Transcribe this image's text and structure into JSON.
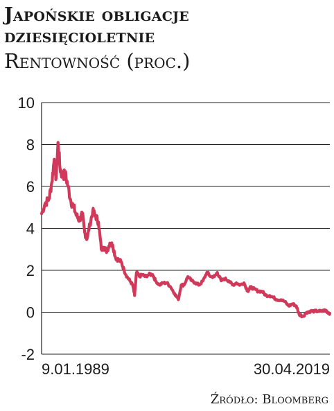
{
  "header": {
    "title": "Japońskie obligacje dziesięcioletnie",
    "subtitle": "Rentowność (proc.)"
  },
  "footer": {
    "source": "Źródło: Bloomberg"
  },
  "colors": {
    "series": "#d0395a",
    "grid": "#222222",
    "text": "#1a1a1a"
  },
  "chart_data": {
    "type": "line",
    "title": "Japońskie obligacje dziesięcioletnie",
    "ylabel": "Rentowność (proc.)",
    "xlabel": "",
    "ylim": [
      -2,
      10
    ],
    "yticks": [
      "10",
      "8",
      "6",
      "4",
      "2",
      "0",
      "-2"
    ],
    "xticks": [
      "9.01.1989",
      "30.04.2019"
    ],
    "grid": true,
    "series": [
      {
        "values": [
          [
            1989.02,
            4.7
          ],
          [
            1989.4,
            5.2
          ],
          [
            1989.8,
            5.4
          ],
          [
            1990.1,
            6.2
          ],
          [
            1990.35,
            7.3
          ],
          [
            1990.55,
            6.4
          ],
          [
            1990.75,
            8.1
          ],
          [
            1990.95,
            6.9
          ],
          [
            1991.2,
            6.5
          ],
          [
            1991.5,
            6.6
          ],
          [
            1991.8,
            6.0
          ],
          [
            1992.1,
            5.3
          ],
          [
            1992.4,
            5.0
          ],
          [
            1992.7,
            4.6
          ],
          [
            1993.0,
            4.4
          ],
          [
            1993.3,
            4.7
          ],
          [
            1993.55,
            3.8
          ],
          [
            1993.8,
            3.5
          ],
          [
            1994.1,
            4.2
          ],
          [
            1994.4,
            4.8
          ],
          [
            1994.7,
            4.6
          ],
          [
            1995.0,
            4.3
          ],
          [
            1995.3,
            3.0
          ],
          [
            1995.6,
            3.1
          ],
          [
            1995.9,
            2.9
          ],
          [
            1996.2,
            3.3
          ],
          [
            1996.5,
            3.2
          ],
          [
            1996.8,
            2.6
          ],
          [
            1997.1,
            2.5
          ],
          [
            1997.4,
            2.4
          ],
          [
            1997.7,
            2.0
          ],
          [
            1998.0,
            1.7
          ],
          [
            1998.3,
            1.5
          ],
          [
            1998.6,
            1.3
          ],
          [
            1998.8,
            0.8
          ],
          [
            1999.0,
            1.9
          ],
          [
            1999.3,
            1.7
          ],
          [
            1999.6,
            1.8
          ],
          [
            1999.9,
            1.7
          ],
          [
            2000.3,
            1.8
          ],
          [
            2000.7,
            1.8
          ],
          [
            2001.0,
            1.5
          ],
          [
            2001.4,
            1.3
          ],
          [
            2001.8,
            1.4
          ],
          [
            2002.2,
            1.4
          ],
          [
            2002.6,
            1.2
          ],
          [
            2003.0,
            0.9
          ],
          [
            2003.4,
            0.6
          ],
          [
            2003.7,
            1.3
          ],
          [
            2004.0,
            1.3
          ],
          [
            2004.4,
            1.7
          ],
          [
            2004.8,
            1.5
          ],
          [
            2005.2,
            1.4
          ],
          [
            2005.6,
            1.3
          ],
          [
            2006.0,
            1.5
          ],
          [
            2006.4,
            1.9
          ],
          [
            2006.8,
            1.7
          ],
          [
            2007.2,
            1.7
          ],
          [
            2007.5,
            1.9
          ],
          [
            2007.9,
            1.5
          ],
          [
            2008.3,
            1.6
          ],
          [
            2008.7,
            1.5
          ],
          [
            2009.1,
            1.3
          ],
          [
            2009.5,
            1.4
          ],
          [
            2009.9,
            1.3
          ],
          [
            2010.3,
            1.4
          ],
          [
            2010.7,
            1.0
          ],
          [
            2011.0,
            1.2
          ],
          [
            2011.4,
            1.1
          ],
          [
            2011.8,
            1.0
          ],
          [
            2012.2,
            1.0
          ],
          [
            2012.6,
            0.8
          ],
          [
            2013.0,
            0.8
          ],
          [
            2013.4,
            0.7
          ],
          [
            2013.8,
            0.6
          ],
          [
            2014.2,
            0.6
          ],
          [
            2014.6,
            0.5
          ],
          [
            2015.0,
            0.3
          ],
          [
            2015.4,
            0.4
          ],
          [
            2015.8,
            0.3
          ],
          [
            2016.1,
            -0.1
          ],
          [
            2016.5,
            -0.2
          ],
          [
            2016.9,
            0.0
          ],
          [
            2017.3,
            0.05
          ],
          [
            2017.7,
            0.05
          ],
          [
            2018.1,
            0.05
          ],
          [
            2018.5,
            0.05
          ],
          [
            2018.9,
            0.1
          ],
          [
            2019.1,
            0.0
          ],
          [
            2019.33,
            -0.05
          ]
        ]
      }
    ]
  }
}
